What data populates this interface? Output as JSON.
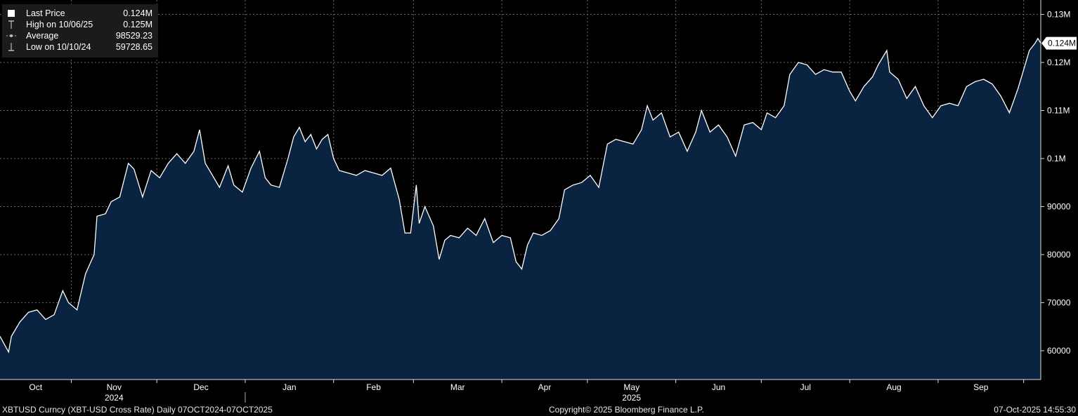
{
  "legend": {
    "rows": [
      {
        "label": "Last Price",
        "value": "0.124M",
        "icon": "white-square-icon"
      },
      {
        "label": "High on 10/06/25",
        "value": "0.125M",
        "icon": "high-marker-icon"
      },
      {
        "label": "Average",
        "value": "98529.23",
        "icon": "average-line-icon"
      },
      {
        "label": "Low on 10/10/24",
        "value": "59728.65",
        "icon": "low-marker-icon"
      }
    ]
  },
  "last_price_tag": "0.124M",
  "footer": {
    "left": "XBTUSD Curncy (XBT-USD Cross Rate) Daily 07OCT2024-07OCT2025",
    "center": "Copyright© 2025 Bloomberg Finance L.P.",
    "right": "07-Oct-2025 14:55:30"
  },
  "colors": {
    "background": "#000000",
    "area_fill": "#0a2340",
    "line": "#ffffff",
    "grid": "#6a6a6a",
    "legend_bg": "#1b1b1b"
  },
  "chart_data": {
    "type": "area",
    "series": [
      {
        "name": "Last Price"
      }
    ],
    "x_start": "2024-10-07",
    "x_end": "2025-10-07",
    "ylim": [
      54000,
      133000
    ],
    "y_ticks": [
      60000,
      70000,
      80000,
      90000,
      100000,
      110000,
      120000,
      130000
    ],
    "y_tick_labels": [
      "60000",
      "70000",
      "80000",
      "90000",
      "0.1M",
      "0.11M",
      "0.12M",
      "0.13M"
    ],
    "x_month_labels": [
      "Oct",
      "Nov",
      "Dec",
      "Jan",
      "Feb",
      "Mar",
      "Apr",
      "May",
      "Jun",
      "Jul",
      "Aug",
      "Sep"
    ],
    "x_year_labels": [
      {
        "label": "2024",
        "month_index": 1
      },
      {
        "label": "2025",
        "month_index": 7
      }
    ],
    "grid": true,
    "points": [
      [
        "2024-10-07",
        63000
      ],
      [
        "2024-10-10",
        59729
      ],
      [
        "2024-10-11",
        63000
      ],
      [
        "2024-10-14",
        66000
      ],
      [
        "2024-10-17",
        68000
      ],
      [
        "2024-10-20",
        68500
      ],
      [
        "2024-10-23",
        66500
      ],
      [
        "2024-10-26",
        67500
      ],
      [
        "2024-10-29",
        72500
      ],
      [
        "2024-10-31",
        70000
      ],
      [
        "2024-11-03",
        68500
      ],
      [
        "2024-11-06",
        76000
      ],
      [
        "2024-11-09",
        80000
      ],
      [
        "2024-11-10",
        88000
      ],
      [
        "2024-11-13",
        88500
      ],
      [
        "2024-11-15",
        91000
      ],
      [
        "2024-11-18",
        92000
      ],
      [
        "2024-11-21",
        99000
      ],
      [
        "2024-11-23",
        97800
      ],
      [
        "2024-11-26",
        92000
      ],
      [
        "2024-11-29",
        97500
      ],
      [
        "2024-12-02",
        96000
      ],
      [
        "2024-12-05",
        99000
      ],
      [
        "2024-12-08",
        101000
      ],
      [
        "2024-12-11",
        99000
      ],
      [
        "2024-12-14",
        101500
      ],
      [
        "2024-12-16",
        106000
      ],
      [
        "2024-12-18",
        99000
      ],
      [
        "2024-12-20",
        97000
      ],
      [
        "2024-12-23",
        94000
      ],
      [
        "2024-12-26",
        98500
      ],
      [
        "2024-12-28",
        94500
      ],
      [
        "2024-12-31",
        93000
      ],
      [
        "2025-01-03",
        98000
      ],
      [
        "2025-01-06",
        101500
      ],
      [
        "2025-01-08",
        96000
      ],
      [
        "2025-01-10",
        94500
      ],
      [
        "2025-01-13",
        94000
      ],
      [
        "2025-01-16",
        100000
      ],
      [
        "2025-01-18",
        104500
      ],
      [
        "2025-01-20",
        106500
      ],
      [
        "2025-01-22",
        103500
      ],
      [
        "2025-01-24",
        105000
      ],
      [
        "2025-01-26",
        102000
      ],
      [
        "2025-01-28",
        104000
      ],
      [
        "2025-01-30",
        105000
      ],
      [
        "2025-02-01",
        100000
      ],
      [
        "2025-02-03",
        97500
      ],
      [
        "2025-02-06",
        97000
      ],
      [
        "2025-02-09",
        96500
      ],
      [
        "2025-02-12",
        97500
      ],
      [
        "2025-02-15",
        97000
      ],
      [
        "2025-02-18",
        96500
      ],
      [
        "2025-02-21",
        98000
      ],
      [
        "2025-02-24",
        91500
      ],
      [
        "2025-02-26",
        84500
      ],
      [
        "2025-02-28",
        84500
      ],
      [
        "2025-03-02",
        94500
      ],
      [
        "2025-03-03",
        86500
      ],
      [
        "2025-03-05",
        90000
      ],
      [
        "2025-03-08",
        86000
      ],
      [
        "2025-03-10",
        79000
      ],
      [
        "2025-03-12",
        83000
      ],
      [
        "2025-03-14",
        84000
      ],
      [
        "2025-03-17",
        83500
      ],
      [
        "2025-03-20",
        85500
      ],
      [
        "2025-03-23",
        84000
      ],
      [
        "2025-03-26",
        87500
      ],
      [
        "2025-03-29",
        82500
      ],
      [
        "2025-04-01",
        84000
      ],
      [
        "2025-04-04",
        83500
      ],
      [
        "2025-04-06",
        78500
      ],
      [
        "2025-04-08",
        77000
      ],
      [
        "2025-04-10",
        82000
      ],
      [
        "2025-04-12",
        84500
      ],
      [
        "2025-04-15",
        84000
      ],
      [
        "2025-04-18",
        85000
      ],
      [
        "2025-04-21",
        87500
      ],
      [
        "2025-04-23",
        93500
      ],
      [
        "2025-04-26",
        94500
      ],
      [
        "2025-04-29",
        95000
      ],
      [
        "2025-05-02",
        96500
      ],
      [
        "2025-05-05",
        94000
      ],
      [
        "2025-05-08",
        103000
      ],
      [
        "2025-05-11",
        104000
      ],
      [
        "2025-05-14",
        103500
      ],
      [
        "2025-05-17",
        103000
      ],
      [
        "2025-05-20",
        106000
      ],
      [
        "2025-05-22",
        111000
      ],
      [
        "2025-05-24",
        108000
      ],
      [
        "2025-05-27",
        109500
      ],
      [
        "2025-05-30",
        104500
      ],
      [
        "2025-06-02",
        105500
      ],
      [
        "2025-06-05",
        101500
      ],
      [
        "2025-06-08",
        105500
      ],
      [
        "2025-06-10",
        110000
      ],
      [
        "2025-06-13",
        105500
      ],
      [
        "2025-06-16",
        107000
      ],
      [
        "2025-06-19",
        104500
      ],
      [
        "2025-06-22",
        100500
      ],
      [
        "2025-06-25",
        107000
      ],
      [
        "2025-06-28",
        107500
      ],
      [
        "2025-07-01",
        106000
      ],
      [
        "2025-07-03",
        109500
      ],
      [
        "2025-07-06",
        108500
      ],
      [
        "2025-07-09",
        111000
      ],
      [
        "2025-07-11",
        117500
      ],
      [
        "2025-07-14",
        120000
      ],
      [
        "2025-07-17",
        119500
      ],
      [
        "2025-07-20",
        117500
      ],
      [
        "2025-07-23",
        118500
      ],
      [
        "2025-07-26",
        118000
      ],
      [
        "2025-07-29",
        118000
      ],
      [
        "2025-08-01",
        114000
      ],
      [
        "2025-08-03",
        112000
      ],
      [
        "2025-08-06",
        115000
      ],
      [
        "2025-08-09",
        117000
      ],
      [
        "2025-08-11",
        119500
      ],
      [
        "2025-08-14",
        122500
      ],
      [
        "2025-08-15",
        118000
      ],
      [
        "2025-08-18",
        116500
      ],
      [
        "2025-08-21",
        112500
      ],
      [
        "2025-08-24",
        115000
      ],
      [
        "2025-08-27",
        111000
      ],
      [
        "2025-08-30",
        108500
      ],
      [
        "2025-09-02",
        111000
      ],
      [
        "2025-09-05",
        111500
      ],
      [
        "2025-09-08",
        111000
      ],
      [
        "2025-09-11",
        115000
      ],
      [
        "2025-09-14",
        116000
      ],
      [
        "2025-09-17",
        116500
      ],
      [
        "2025-09-20",
        115500
      ],
      [
        "2025-09-23",
        113000
      ],
      [
        "2025-09-26",
        109500
      ],
      [
        "2025-09-29",
        114500
      ],
      [
        "2025-10-01",
        118500
      ],
      [
        "2025-10-03",
        122500
      ],
      [
        "2025-10-05",
        124000
      ],
      [
        "2025-10-06",
        125000
      ],
      [
        "2025-10-07",
        124000
      ]
    ]
  }
}
